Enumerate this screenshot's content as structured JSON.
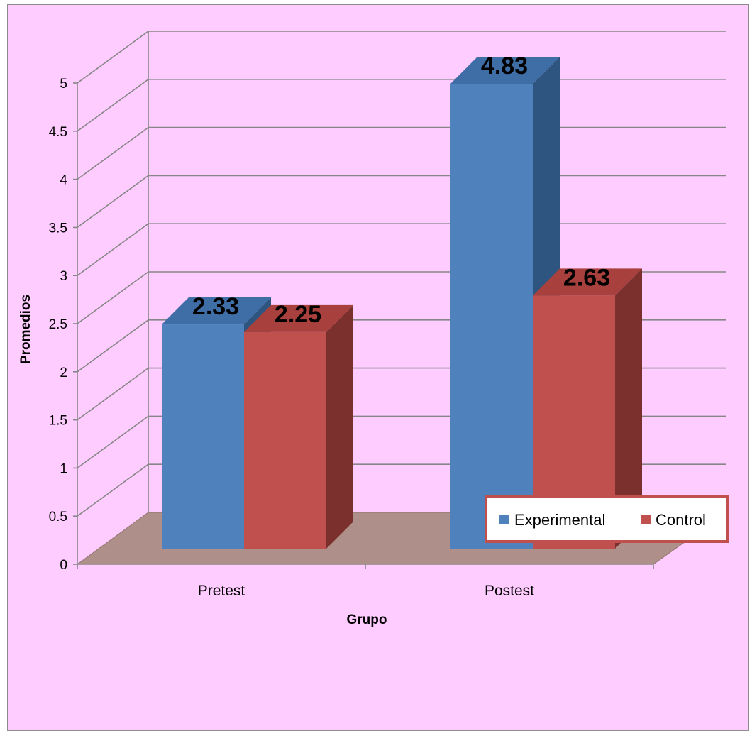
{
  "chart_data": {
    "type": "bar",
    "title": "",
    "xlabel": "Grupo",
    "ylabel": "Promedios",
    "ylim": [
      0,
      5
    ],
    "ystep": 0.5,
    "ytick_labels": [
      "0",
      "0.5",
      "1",
      "1.5",
      "2",
      "2.5",
      "3",
      "3.5",
      "4",
      "4.5",
      "5"
    ],
    "categories": [
      "Pretest",
      "Postest"
    ],
    "series": [
      {
        "name": "Experimental",
        "values": [
          2.33,
          4.83
        ],
        "data_labels": [
          "2.33",
          "4.83"
        ]
      },
      {
        "name": "Control",
        "values": [
          2.25,
          2.63
        ],
        "data_labels": [
          "2.25",
          "2.63"
        ]
      }
    ],
    "legend_position": "bottom-right",
    "grid": true,
    "three_d": true
  },
  "colors": {
    "background": "#ffccff",
    "floor": "#ae8f8a",
    "gridline": "#868686",
    "series_front": [
      "#4f81bd",
      "#c0504d"
    ],
    "series_side": [
      "#2e5480",
      "#7c302e"
    ],
    "series_top": [
      "#3f6da6",
      "#a8413e"
    ],
    "legend_border": "#c0504d"
  }
}
